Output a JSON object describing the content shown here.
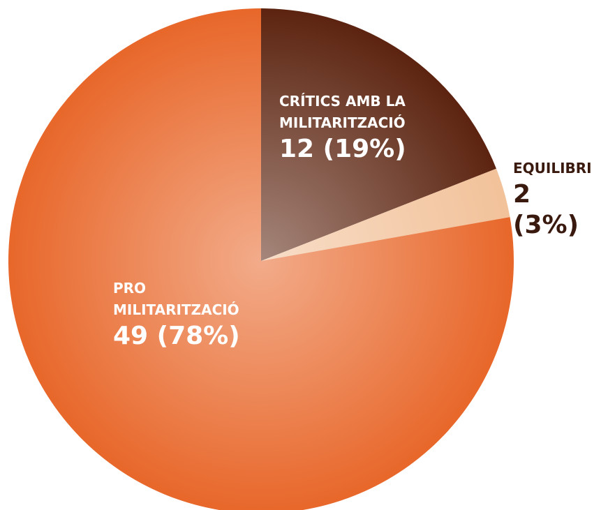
{
  "chart_data": {
    "type": "pie",
    "categories": [
      "CRÍTICS AMB LA MILITARITZACIÓ",
      "EQUILIBRI",
      "PRO MILITARITZACIÓ"
    ],
    "values": [
      12,
      2,
      49
    ],
    "value_labels": [
      "12 (19%)",
      "2 (3%)",
      "49 (78%)"
    ],
    "colors": [
      "#5c2410",
      "#f2c29a",
      "#e8672a"
    ]
  }
}
